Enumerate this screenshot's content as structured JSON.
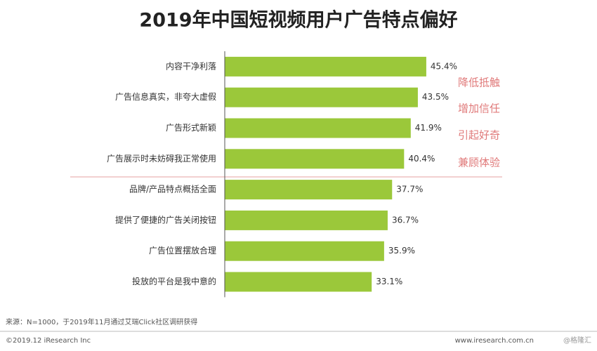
{
  "chart_data": {
    "type": "bar",
    "orientation": "horizontal",
    "title": "2019年中国短视频用户广告特点偏好",
    "categories": [
      "内容干净利落",
      "广告信息真实，非夸大虚假",
      "广告形式新颖",
      "广告展示时未妨碍我正常使用",
      "品牌/产品特点概括全面",
      "提供了便捷的广告关闭按钮",
      "广告位置摆放合理",
      "投放的平台是我中意的"
    ],
    "values": [
      45.4,
      43.5,
      41.9,
      40.4,
      37.7,
      36.7,
      35.9,
      33.1
    ],
    "value_labels": [
      "45.4%",
      "43.5%",
      "41.9%",
      "40.4%",
      "37.7%",
      "36.7%",
      "35.9%",
      "33.1%"
    ],
    "color": "#9bc83a",
    "annotations": [
      "降低抵触",
      "增加信任",
      "引起好奇",
      "兼顾体验"
    ],
    "source": "来源：N=1000，于2019年11月通过艾瑞Click社区调研获得",
    "copyright": "©2019.12 iResearch Inc",
    "website": "www.iresearch.com.cn",
    "watermark": "@格隆汇"
  }
}
